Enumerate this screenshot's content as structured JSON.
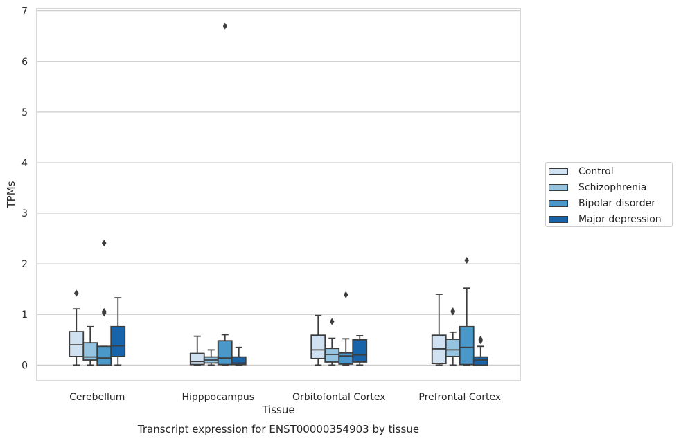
{
  "chart_data": {
    "type": "box",
    "title": "Transcript expression for ENST00000354903 by tissue",
    "xlabel": "Tissue",
    "ylabel": "TPMs",
    "ylim": [
      -0.31,
      7.05
    ],
    "yticks": [
      0,
      1,
      2,
      3,
      4,
      5,
      6,
      7
    ],
    "grid": true,
    "legend_position": "right",
    "categories": [
      "Cerebellum",
      "Hipppocampus",
      "Orbitofontal Cortex",
      "Prefrontal Cortex"
    ],
    "series": [
      {
        "name": "Control",
        "color": "#d0e1f2",
        "boxes": [
          {
            "min": 0.0,
            "q1": 0.17,
            "median": 0.4,
            "q3": 0.66,
            "max": 1.11,
            "outliers": [
              1.42
            ]
          },
          {
            "min": 0.0,
            "q1": 0.01,
            "median": 0.07,
            "q3": 0.23,
            "max": 0.57,
            "outliers": []
          },
          {
            "min": 0.0,
            "q1": 0.13,
            "median": 0.3,
            "q3": 0.59,
            "max": 0.98,
            "outliers": []
          },
          {
            "min": 0.0,
            "q1": 0.03,
            "median": 0.32,
            "q3": 0.59,
            "max": 1.4,
            "outliers": []
          }
        ]
      },
      {
        "name": "Schizophrenia",
        "color": "#94c4df",
        "boxes": [
          {
            "min": 0.0,
            "q1": 0.1,
            "median": 0.16,
            "q3": 0.44,
            "max": 0.76,
            "outliers": []
          },
          {
            "min": 0.0,
            "q1": 0.04,
            "median": 0.1,
            "q3": 0.16,
            "max": 0.3,
            "outliers": []
          },
          {
            "min": 0.0,
            "q1": 0.06,
            "median": 0.21,
            "q3": 0.33,
            "max": 0.53,
            "outliers": [
              0.86
            ]
          },
          {
            "min": 0.0,
            "q1": 0.17,
            "median": 0.3,
            "q3": 0.51,
            "max": 0.65,
            "outliers": [
              1.05,
              1.07
            ]
          }
        ]
      },
      {
        "name": "Bipolar disorder",
        "color": "#4a98c9",
        "boxes": [
          {
            "min": 0.0,
            "q1": 0.0,
            "median": 0.14,
            "q3": 0.37,
            "max": 0.37,
            "outliers": [
              1.03,
              1.06,
              2.41
            ]
          },
          {
            "min": 0.0,
            "q1": 0.01,
            "median": 0.14,
            "q3": 0.48,
            "max": 0.6,
            "outliers": [
              6.7
            ]
          },
          {
            "min": 0.0,
            "q1": 0.02,
            "median": 0.18,
            "q3": 0.24,
            "max": 0.52,
            "outliers": [
              1.39
            ]
          },
          {
            "min": 0.0,
            "q1": 0.01,
            "median": 0.35,
            "q3": 0.76,
            "max": 1.52,
            "outliers": [
              2.07
            ]
          }
        ]
      },
      {
        "name": "Major depression",
        "color": "#1764ab",
        "boxes": [
          {
            "min": 0.0,
            "q1": 0.17,
            "median": 0.38,
            "q3": 0.76,
            "max": 1.33,
            "outliers": []
          },
          {
            "min": 0.0,
            "q1": 0.01,
            "median": 0.04,
            "q3": 0.16,
            "max": 0.35,
            "outliers": []
          },
          {
            "min": 0.0,
            "q1": 0.06,
            "median": 0.2,
            "q3": 0.5,
            "max": 0.58,
            "outliers": []
          },
          {
            "min": 0.0,
            "q1": 0.0,
            "median": 0.1,
            "q3": 0.16,
            "max": 0.37,
            "outliers": [
              0.48,
              0.51
            ]
          }
        ]
      }
    ]
  }
}
